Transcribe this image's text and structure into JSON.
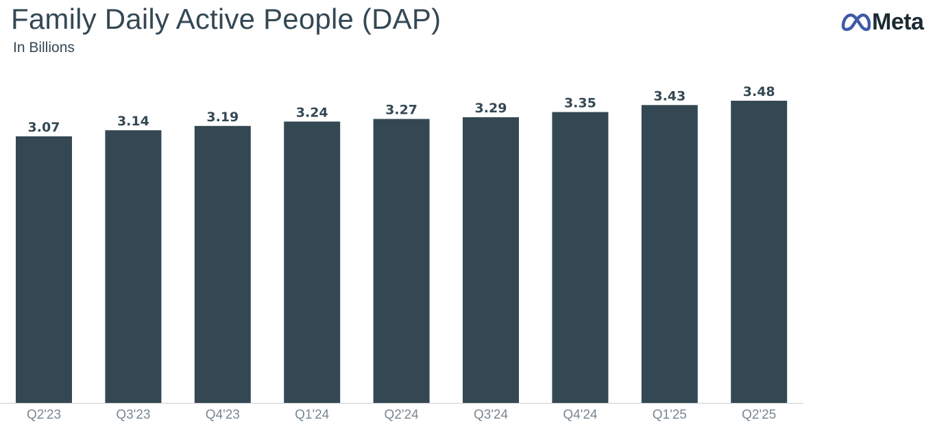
{
  "header": {
    "title": "Family Daily Active People (DAP)",
    "subtitle": "In Billions"
  },
  "logo": {
    "icon": "meta-infinity-icon",
    "text": "Meta",
    "color": "#1c2b33",
    "icon_color": "#3d5ba8"
  },
  "chart_data": {
    "type": "bar",
    "title": "Family Daily Active People (DAP)",
    "subtitle": "In Billions",
    "categories": [
      "Q2'23",
      "Q3'23",
      "Q4'23",
      "Q1'24",
      "Q2'24",
      "Q3'24",
      "Q4'24",
      "Q1'25",
      "Q2'25"
    ],
    "values": [
      3.07,
      3.14,
      3.19,
      3.24,
      3.27,
      3.29,
      3.35,
      3.43,
      3.48
    ],
    "value_labels": [
      "3.07",
      "3.14",
      "3.19",
      "3.24",
      "3.27",
      "3.29",
      "3.35",
      "3.43",
      "3.48"
    ],
    "ylim": [
      0,
      3.48
    ],
    "grid": false,
    "legend": "none",
    "bar_color": "#344854",
    "axis_color": "#c9cdd1"
  }
}
